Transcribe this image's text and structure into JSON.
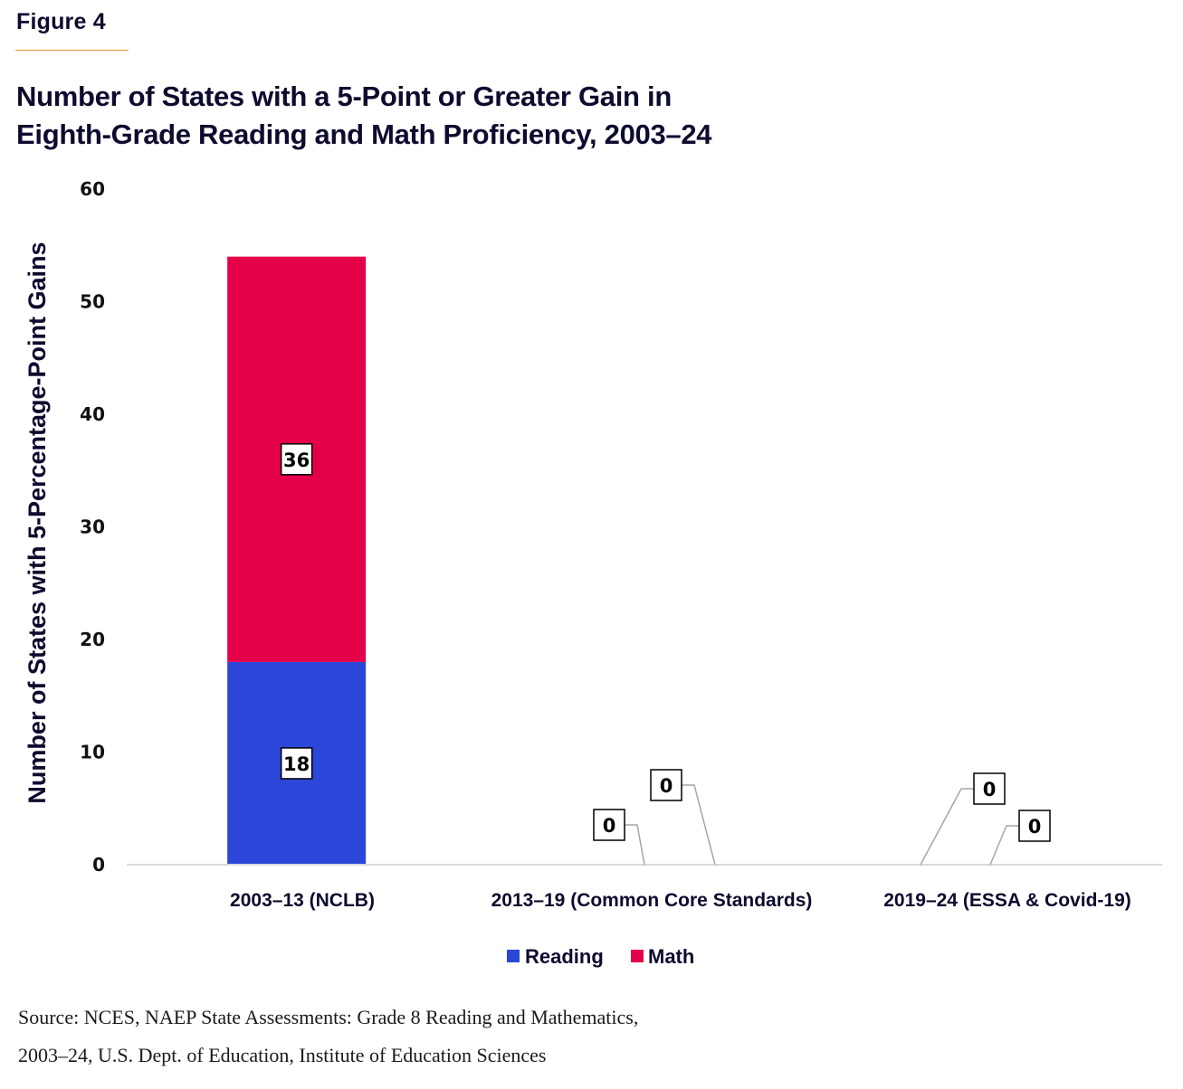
{
  "figure_label": "Figure 4",
  "title_lines": [
    "Number of States with a 5-Point or Greater Gain in",
    "Eighth-Grade Reading and Math Proficiency, 2003–24"
  ],
  "source_lines": [
    "Source: NCES, NAEP State Assessments: Grade 8 Reading and Mathematics,",
    "2003–24, U.S. Dept. of Education, Institute of Education Sciences"
  ],
  "colors": {
    "reading": "#2c46d9",
    "math": "#e5004a",
    "axis": "#d9d9d9",
    "leader": "#a6a6a6",
    "accent_rule": "#e8962e"
  },
  "chart_data": {
    "type": "bar",
    "stacked": true,
    "title": "Number of States with a 5-Point or Greater Gain in Eighth-Grade Reading and Math Proficiency, 2003–24",
    "xlabel": "",
    "ylabel": "Number of States with 5-Percentage-Point Gains",
    "ylim": [
      0,
      60
    ],
    "yticks": [
      0,
      10,
      20,
      30,
      40,
      50,
      60
    ],
    "grid": false,
    "legend_position": "bottom-center",
    "categories": [
      "2003–13 (NCLB)",
      "2013–19 (Common Core Standards)",
      "2019–24 (ESSA & Covid-19)"
    ],
    "series": [
      {
        "name": "Reading",
        "values": [
          18,
          0,
          0
        ],
        "data_labels": [
          "18",
          "0",
          "0"
        ]
      },
      {
        "name": "Math",
        "values": [
          36,
          0,
          0
        ],
        "data_labels": [
          "36",
          "0",
          "0"
        ]
      }
    ]
  }
}
